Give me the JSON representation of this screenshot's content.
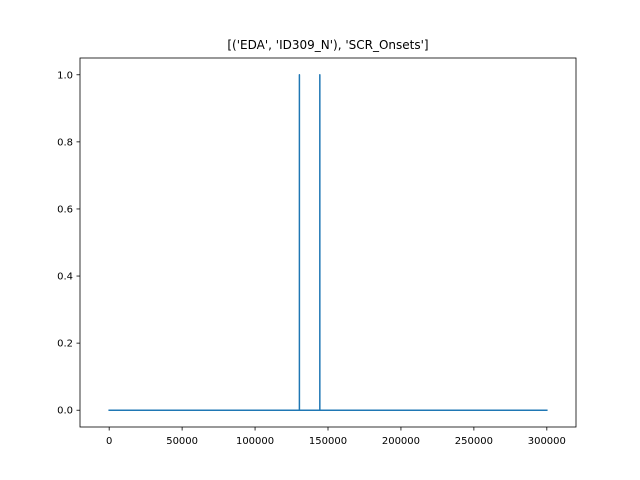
{
  "chart_data": {
    "type": "line",
    "title": "[('EDA', 'ID309_N'), 'SCR_Onsets']",
    "xlabel": "",
    "ylabel": "",
    "xlim": [
      -20000,
      320000
    ],
    "ylim": [
      -0.05,
      1.05
    ],
    "x_ticks": [
      0,
      50000,
      100000,
      150000,
      200000,
      250000,
      300000
    ],
    "x_tick_labels": [
      "0",
      "50000",
      "100000",
      "150000",
      "200000",
      "250000",
      "300000"
    ],
    "y_ticks": [
      0.0,
      0.2,
      0.4,
      0.6,
      0.8,
      1.0
    ],
    "y_tick_labels": [
      "0.0",
      "0.2",
      "0.4",
      "0.6",
      "0.8",
      "1.0"
    ],
    "grid": false,
    "series": [
      {
        "color": "#1f77b4",
        "x": [
          0,
          130399,
          130400,
          130401,
          144399,
          144400,
          144401,
          300000
        ],
        "y": [
          0,
          0,
          1,
          0,
          0,
          1,
          0,
          0
        ]
      }
    ]
  }
}
